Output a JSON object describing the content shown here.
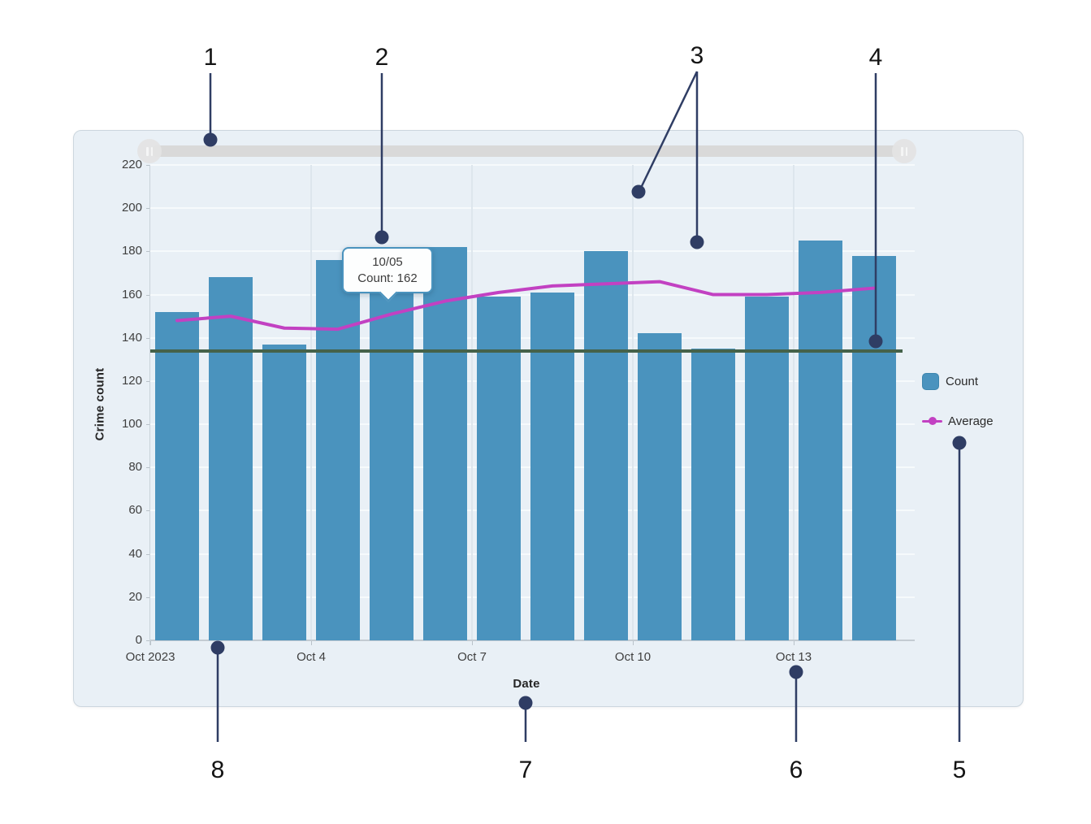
{
  "chart_data": {
    "type": "bar",
    "title": "",
    "categories": [
      "10/01",
      "10/02",
      "10/03",
      "10/04",
      "10/05",
      "10/06",
      "10/07",
      "10/08",
      "10/09",
      "10/10",
      "10/11",
      "10/12",
      "10/13",
      "10/14"
    ],
    "series": [
      {
        "name": "Count",
        "type": "bar",
        "color": "#4a93be",
        "values": [
          152,
          168,
          137,
          176,
          162,
          182,
          159,
          161,
          180,
          142,
          135,
          159,
          185,
          178
        ]
      },
      {
        "name": "Average",
        "type": "line",
        "color": "#c241c2",
        "values": [
          148,
          150,
          144.5,
          144,
          151,
          157,
          161,
          164,
          165,
          166,
          160,
          160,
          161,
          163
        ]
      }
    ],
    "reference_line": {
      "value": 134,
      "color": "#45624a"
    },
    "xlabel": "Date",
    "ylabel": "Crime count",
    "x_ticks": [
      {
        "label": "Oct 2023",
        "day": 1
      },
      {
        "label": "Oct 4",
        "day": 4
      },
      {
        "label": "Oct 7",
        "day": 7
      },
      {
        "label": "Oct 10",
        "day": 10
      },
      {
        "label": "Oct 13",
        "day": 13
      }
    ],
    "y_ticks": [
      0,
      20,
      40,
      60,
      80,
      100,
      120,
      140,
      160,
      180,
      200,
      220
    ],
    "ylim": [
      0,
      220
    ],
    "grid": true,
    "legend_position": "right"
  },
  "tooltip": {
    "title": "10/05",
    "value": "Count: 162"
  },
  "slider": {
    "left_handle": "drag-handle",
    "right_handle": "drag-handle"
  },
  "annotations": {
    "color": "#2f3d64",
    "items": [
      {
        "label": "1",
        "text": [
          259,
          80
        ],
        "lines": [
          [
            259,
            90,
            259,
            165
          ]
        ],
        "dots": [
          [
            259,
            172
          ]
        ]
      },
      {
        "label": "2",
        "text": [
          470,
          80
        ],
        "lines": [
          [
            470,
            90,
            470,
            284
          ]
        ],
        "dots": [
          [
            470,
            292
          ]
        ]
      },
      {
        "label": "3",
        "text": [
          858,
          78
        ],
        "lines": [
          [
            858,
            88,
            790,
            229
          ],
          [
            858,
            88,
            858,
            290
          ]
        ],
        "dots": [
          [
            786,
            236
          ],
          [
            858,
            298
          ]
        ]
      },
      {
        "label": "4",
        "text": [
          1078,
          80
        ],
        "lines": [
          [
            1078,
            90,
            1078,
            412
          ]
        ],
        "dots": [
          [
            1078,
            420
          ]
        ]
      },
      {
        "label": "5",
        "text": [
          1181,
          957
        ],
        "lines": [
          [
            1181,
            913,
            1181,
            553
          ]
        ],
        "dots": [
          [
            1181,
            545
          ]
        ]
      },
      {
        "label": "6",
        "text": [
          980,
          957
        ],
        "lines": [
          [
            980,
            913,
            980,
            835
          ]
        ],
        "dots": [
          [
            980,
            827
          ]
        ]
      },
      {
        "label": "7",
        "text": [
          647,
          957
        ],
        "lines": [
          [
            647,
            913,
            647,
            873
          ]
        ],
        "dots": [
          [
            647,
            865
          ]
        ]
      },
      {
        "label": "8",
        "text": [
          268,
          957
        ],
        "lines": [
          [
            268,
            913,
            268,
            805
          ]
        ],
        "dots": [
          [
            268,
            797
          ]
        ]
      }
    ]
  },
  "colors": {
    "bar": "#4a93be",
    "average_line": "#c241c2",
    "reference_line": "#45624a",
    "callout": "#2f3d64",
    "panel_bg": "#e9f0f6",
    "panel_border": "#ccd6de",
    "slider_track": "#d9d9d9",
    "slider_handle": "#e4e4e4"
  }
}
